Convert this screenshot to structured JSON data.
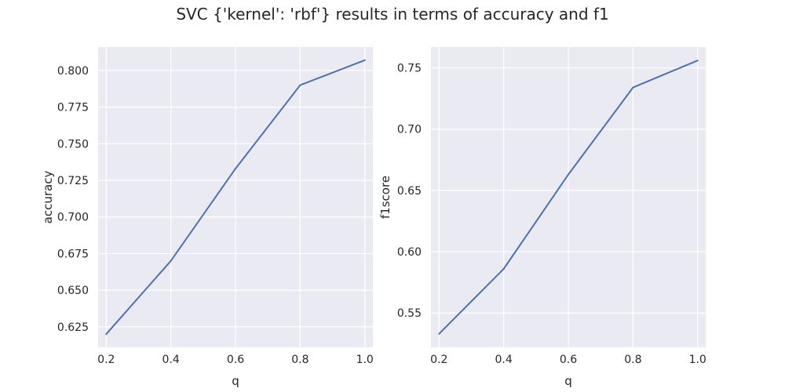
{
  "title": "SVC {'kernel': 'rbf'} results in terms of accuracy and f1",
  "colors": {
    "background": "#eaeaf2",
    "grid": "#ffffff",
    "line": "#4c72b0",
    "text": "#262626"
  },
  "chart_data": [
    {
      "type": "line",
      "xlabel": "q",
      "ylabel": "accuracy",
      "x": [
        0.2,
        0.4,
        0.6,
        0.8,
        1.0
      ],
      "series": [
        {
          "values": [
            0.62,
            0.67,
            0.733,
            0.79,
            0.807
          ]
        }
      ],
      "xlim": [
        0.175,
        1.025
      ],
      "ylim": [
        0.611,
        0.816
      ],
      "xticks": [
        0.2,
        0.4,
        0.6,
        0.8,
        1.0
      ],
      "xtick_labels": [
        "0.2",
        "0.4",
        "0.6",
        "0.8",
        "1.0"
      ],
      "yticks": [
        0.625,
        0.65,
        0.675,
        0.7,
        0.725,
        0.75,
        0.775,
        0.8
      ],
      "ytick_labels": [
        "0.625",
        "0.650",
        "0.675",
        "0.700",
        "0.725",
        "0.750",
        "0.775",
        "0.800"
      ],
      "grid": true
    },
    {
      "type": "line",
      "xlabel": "q",
      "ylabel": "f1score",
      "x": [
        0.2,
        0.4,
        0.6,
        0.8,
        1.0
      ],
      "series": [
        {
          "values": [
            0.533,
            0.586,
            0.663,
            0.734,
            0.756
          ]
        }
      ],
      "xlim": [
        0.175,
        1.025
      ],
      "ylim": [
        0.522,
        0.767
      ],
      "xticks": [
        0.2,
        0.4,
        0.6,
        0.8,
        1.0
      ],
      "xtick_labels": [
        "0.2",
        "0.4",
        "0.6",
        "0.8",
        "1.0"
      ],
      "yticks": [
        0.55,
        0.6,
        0.65,
        0.7,
        0.75
      ],
      "ytick_labels": [
        "0.55",
        "0.60",
        "0.65",
        "0.70",
        "0.75"
      ],
      "grid": true
    }
  ]
}
